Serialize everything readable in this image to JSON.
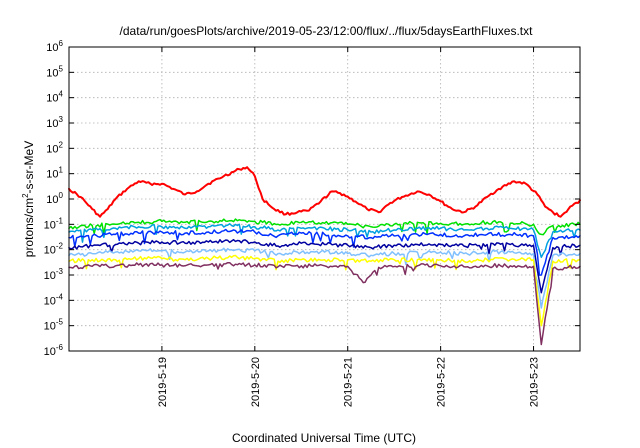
{
  "chart_data": {
    "type": "line",
    "title": "/data/run/goesPlots/archive/2019-05-23/12:00/flux/../flux/5daysEarthFluxes.txt",
    "xlabel": "Coordinated Universal Time (UTC)",
    "ylabel_main": "protons/cm",
    "ylabel_sup": "2",
    "ylabel_tail": "-s-sr-MeV",
    "yscale": "log",
    "ylim": [
      1e-06,
      1000000.0
    ],
    "y_ticks": [
      {
        "base": "10",
        "exp": "-6",
        "value": 1e-06
      },
      {
        "base": "10",
        "exp": "-5",
        "value": 1e-05
      },
      {
        "base": "10",
        "exp": "-4",
        "value": 0.0001
      },
      {
        "base": "10",
        "exp": "-3",
        "value": 0.001
      },
      {
        "base": "10",
        "exp": "-2",
        "value": 0.01
      },
      {
        "base": "10",
        "exp": "-1",
        "value": 0.1
      },
      {
        "base": "10",
        "exp": "0",
        "value": 1
      },
      {
        "base": "10",
        "exp": "1",
        "value": 10
      },
      {
        "base": "10",
        "exp": "2",
        "value": 100
      },
      {
        "base": "10",
        "exp": "3",
        "value": 1000
      },
      {
        "base": "10",
        "exp": "4",
        "value": 10000
      },
      {
        "base": "10",
        "exp": "5",
        "value": 100000
      },
      {
        "base": "10",
        "exp": "6",
        "value": 1000000
      }
    ],
    "xlim": [
      "2019-05-18T00:00",
      "2019-05-23T12:00"
    ],
    "x_ticks": [
      {
        "label": "2019-5-19",
        "value": "2019-05-19T00:00"
      },
      {
        "label": "2019-5-20",
        "value": "2019-05-20T00:00"
      },
      {
        "label": "2019-5-21",
        "value": "2019-05-21T00:00"
      },
      {
        "label": "2019-5-22",
        "value": "2019-05-22T00:00"
      },
      {
        "label": "2019-5-23",
        "value": "2019-05-23T00:00"
      }
    ],
    "grid": true,
    "series": [
      {
        "color": "#ff0000",
        "width": 2,
        "points": [
          [
            "2019-05-18T00:00",
            2.5
          ],
          [
            "2019-05-18T03:00",
            1.2
          ],
          [
            "2019-05-18T06:00",
            0.4
          ],
          [
            "2019-05-18T08:00",
            0.2
          ],
          [
            "2019-05-18T10:00",
            0.4
          ],
          [
            "2019-05-18T12:00",
            1.0
          ],
          [
            "2019-05-18T15:00",
            2.5
          ],
          [
            "2019-05-18T18:00",
            5.0
          ],
          [
            "2019-05-18T21:00",
            4.0
          ],
          [
            "2019-05-19T00:00",
            4.0
          ],
          [
            "2019-05-19T03:00",
            2.5
          ],
          [
            "2019-05-19T06:00",
            1.5
          ],
          [
            "2019-05-19T09:00",
            2.0
          ],
          [
            "2019-05-19T12:00",
            4.0
          ],
          [
            "2019-05-19T16:00",
            8.0
          ],
          [
            "2019-05-19T20:00",
            15.0
          ],
          [
            "2019-05-19T22:00",
            18.0
          ],
          [
            "2019-05-20T00:00",
            8.0
          ],
          [
            "2019-05-20T02:00",
            1.0
          ],
          [
            "2019-05-20T05:00",
            0.4
          ],
          [
            "2019-05-20T08:00",
            0.25
          ],
          [
            "2019-05-20T11:00",
            0.3
          ],
          [
            "2019-05-20T14:00",
            0.35
          ],
          [
            "2019-05-20T17:00",
            0.8
          ],
          [
            "2019-05-20T20:00",
            2.0
          ],
          [
            "2019-05-20T23:00",
            1.5
          ],
          [
            "2019-05-21T02:00",
            0.8
          ],
          [
            "2019-05-21T05:00",
            0.4
          ],
          [
            "2019-05-21T08:00",
            0.3
          ],
          [
            "2019-05-21T11:00",
            0.7
          ],
          [
            "2019-05-21T14:00",
            1.2
          ],
          [
            "2019-05-21T18:00",
            2.0
          ],
          [
            "2019-05-21T21:00",
            1.5
          ],
          [
            "2019-05-22T00:00",
            0.8
          ],
          [
            "2019-05-22T03:00",
            0.4
          ],
          [
            "2019-05-22T06:00",
            0.3
          ],
          [
            "2019-05-22T09:00",
            0.5
          ],
          [
            "2019-05-22T12:00",
            1.2
          ],
          [
            "2019-05-22T15:00",
            2.5
          ],
          [
            "2019-05-22T19:00",
            5.0
          ],
          [
            "2019-05-22T22:00",
            4.0
          ],
          [
            "2019-05-23T01:00",
            1.5
          ],
          [
            "2019-05-23T03:00",
            0.5
          ],
          [
            "2019-05-23T05:00",
            0.3
          ],
          [
            "2019-05-23T07:00",
            0.2
          ],
          [
            "2019-05-23T09:00",
            0.4
          ],
          [
            "2019-05-23T12:00",
            0.9
          ]
        ]
      },
      {
        "color": "#00e000",
        "width": 1.5,
        "points": [
          [
            "2019-05-18T00:00",
            0.07
          ],
          [
            "2019-05-18T06:00",
            0.09
          ],
          [
            "2019-05-18T12:00",
            0.1
          ],
          [
            "2019-05-18T18:00",
            0.12
          ],
          [
            "2019-05-19T00:00",
            0.13
          ],
          [
            "2019-05-19T06:00",
            0.12
          ],
          [
            "2019-05-19T12:00",
            0.13
          ],
          [
            "2019-05-19T18:00",
            0.14
          ],
          [
            "2019-05-20T00:00",
            0.13
          ],
          [
            "2019-05-20T06:00",
            0.1
          ],
          [
            "2019-05-20T12:00",
            0.12
          ],
          [
            "2019-05-20T18:00",
            0.11
          ],
          [
            "2019-05-21T00:00",
            0.1
          ],
          [
            "2019-05-21T06:00",
            0.08
          ],
          [
            "2019-05-21T12:00",
            0.1
          ],
          [
            "2019-05-21T18:00",
            0.12
          ],
          [
            "2019-05-22T00:00",
            0.11
          ],
          [
            "2019-05-22T06:00",
            0.1
          ],
          [
            "2019-05-22T12:00",
            0.12
          ],
          [
            "2019-05-22T18:00",
            0.11
          ],
          [
            "2019-05-23T00:00",
            0.1
          ],
          [
            "2019-05-23T02:00",
            0.04
          ],
          [
            "2019-05-23T05:00",
            0.09
          ],
          [
            "2019-05-23T12:00",
            0.1
          ]
        ]
      },
      {
        "color": "#00a0e0",
        "width": 1.5,
        "points": [
          [
            "2019-05-18T00:00",
            0.05
          ],
          [
            "2019-05-18T06:00",
            0.06
          ],
          [
            "2019-05-18T12:00",
            0.07
          ],
          [
            "2019-05-18T18:00",
            0.08
          ],
          [
            "2019-05-19T00:00",
            0.08
          ],
          [
            "2019-05-19T06:00",
            0.07
          ],
          [
            "2019-05-19T12:00",
            0.08
          ],
          [
            "2019-05-19T18:00",
            0.09
          ],
          [
            "2019-05-20T00:00",
            0.08
          ],
          [
            "2019-05-20T06:00",
            0.06
          ],
          [
            "2019-05-20T12:00",
            0.07
          ],
          [
            "2019-05-20T18:00",
            0.07
          ],
          [
            "2019-05-21T00:00",
            0.06
          ],
          [
            "2019-05-21T06:00",
            0.05
          ],
          [
            "2019-05-21T12:00",
            0.06
          ],
          [
            "2019-05-21T18:00",
            0.07
          ],
          [
            "2019-05-22T00:00",
            0.07
          ],
          [
            "2019-05-22T06:00",
            0.06
          ],
          [
            "2019-05-22T12:00",
            0.07
          ],
          [
            "2019-05-22T18:00",
            0.07
          ],
          [
            "2019-05-23T00:00",
            0.06
          ],
          [
            "2019-05-23T02:00",
            0.005
          ],
          [
            "2019-05-23T05:00",
            0.05
          ],
          [
            "2019-05-23T12:00",
            0.06
          ]
        ]
      },
      {
        "color": "#0030ff",
        "width": 1.5,
        "points": [
          [
            "2019-05-18T00:00",
            0.03
          ],
          [
            "2019-05-18T06:00",
            0.035
          ],
          [
            "2019-05-18T12:00",
            0.04
          ],
          [
            "2019-05-18T18:00",
            0.045
          ],
          [
            "2019-05-19T00:00",
            0.05
          ],
          [
            "2019-05-19T06:00",
            0.045
          ],
          [
            "2019-05-19T12:00",
            0.05
          ],
          [
            "2019-05-19T18:00",
            0.055
          ],
          [
            "2019-05-20T00:00",
            0.05
          ],
          [
            "2019-05-20T06:00",
            0.035
          ],
          [
            "2019-05-20T12:00",
            0.045
          ],
          [
            "2019-05-20T18:00",
            0.04
          ],
          [
            "2019-05-21T00:00",
            0.035
          ],
          [
            "2019-05-21T06:00",
            0.03
          ],
          [
            "2019-05-21T12:00",
            0.035
          ],
          [
            "2019-05-21T18:00",
            0.04
          ],
          [
            "2019-05-22T00:00",
            0.04
          ],
          [
            "2019-05-22T06:00",
            0.035
          ],
          [
            "2019-05-22T12:00",
            0.04
          ],
          [
            "2019-05-22T18:00",
            0.04
          ],
          [
            "2019-05-23T00:00",
            0.035
          ],
          [
            "2019-05-23T02:00",
            0.001
          ],
          [
            "2019-05-23T05:00",
            0.03
          ],
          [
            "2019-05-23T12:00",
            0.035
          ]
        ]
      },
      {
        "color": "#0000a0",
        "width": 1.5,
        "points": [
          [
            "2019-05-18T00:00",
            0.012
          ],
          [
            "2019-05-18T06:00",
            0.014
          ],
          [
            "2019-05-18T12:00",
            0.016
          ],
          [
            "2019-05-18T18:00",
            0.018
          ],
          [
            "2019-05-19T00:00",
            0.02
          ],
          [
            "2019-05-19T06:00",
            0.018
          ],
          [
            "2019-05-19T12:00",
            0.02
          ],
          [
            "2019-05-19T18:00",
            0.022
          ],
          [
            "2019-05-20T00:00",
            0.02
          ],
          [
            "2019-05-20T06:00",
            0.014
          ],
          [
            "2019-05-20T12:00",
            0.018
          ],
          [
            "2019-05-20T18:00",
            0.016
          ],
          [
            "2019-05-21T00:00",
            0.015
          ],
          [
            "2019-05-21T06:00",
            0.012
          ],
          [
            "2019-05-21T12:00",
            0.015
          ],
          [
            "2019-05-21T18:00",
            0.016
          ],
          [
            "2019-05-22T00:00",
            0.016
          ],
          [
            "2019-05-22T06:00",
            0.014
          ],
          [
            "2019-05-22T12:00",
            0.016
          ],
          [
            "2019-05-22T18:00",
            0.016
          ],
          [
            "2019-05-23T00:00",
            0.015
          ],
          [
            "2019-05-23T02:00",
            0.0002
          ],
          [
            "2019-05-23T05:00",
            0.012
          ],
          [
            "2019-05-23T12:00",
            0.015
          ]
        ]
      },
      {
        "color": "#80c0ff",
        "width": 1.5,
        "points": [
          [
            "2019-05-18T00:00",
            0.006
          ],
          [
            "2019-05-18T06:00",
            0.007
          ],
          [
            "2019-05-18T12:00",
            0.008
          ],
          [
            "2019-05-18T18:00",
            0.009
          ],
          [
            "2019-05-19T00:00",
            0.009
          ],
          [
            "2019-05-19T06:00",
            0.008
          ],
          [
            "2019-05-19T12:00",
            0.009
          ],
          [
            "2019-05-19T18:00",
            0.01
          ],
          [
            "2019-05-20T00:00",
            0.009
          ],
          [
            "2019-05-20T06:00",
            0.007
          ],
          [
            "2019-05-20T12:00",
            0.008
          ],
          [
            "2019-05-20T18:00",
            0.008
          ],
          [
            "2019-05-21T00:00",
            0.007
          ],
          [
            "2019-05-21T06:00",
            0.006
          ],
          [
            "2019-05-21T12:00",
            0.007
          ],
          [
            "2019-05-21T18:00",
            0.008
          ],
          [
            "2019-05-22T00:00",
            0.008
          ],
          [
            "2019-05-22T06:00",
            0.007
          ],
          [
            "2019-05-22T12:00",
            0.008
          ],
          [
            "2019-05-22T18:00",
            0.008
          ],
          [
            "2019-05-23T00:00",
            0.007
          ],
          [
            "2019-05-23T02:00",
            5e-05
          ],
          [
            "2019-05-23T05:00",
            0.006
          ],
          [
            "2019-05-23T12:00",
            0.007
          ]
        ]
      },
      {
        "color": "#ffff00",
        "width": 1.5,
        "points": [
          [
            "2019-05-18T00:00",
            0.0035
          ],
          [
            "2019-05-18T06:00",
            0.004
          ],
          [
            "2019-05-18T12:00",
            0.004
          ],
          [
            "2019-05-18T18:00",
            0.0045
          ],
          [
            "2019-05-19T00:00",
            0.0045
          ],
          [
            "2019-05-19T06:00",
            0.004
          ],
          [
            "2019-05-19T12:00",
            0.0045
          ],
          [
            "2019-05-19T18:00",
            0.005
          ],
          [
            "2019-05-20T00:00",
            0.0045
          ],
          [
            "2019-05-20T06:00",
            0.0035
          ],
          [
            "2019-05-20T12:00",
            0.004
          ],
          [
            "2019-05-20T18:00",
            0.004
          ],
          [
            "2019-05-21T00:00",
            0.004
          ],
          [
            "2019-05-21T06:00",
            0.0035
          ],
          [
            "2019-05-21T12:00",
            0.004
          ],
          [
            "2019-05-21T18:00",
            0.004
          ],
          [
            "2019-05-22T00:00",
            0.004
          ],
          [
            "2019-05-22T06:00",
            0.0035
          ],
          [
            "2019-05-22T12:00",
            0.004
          ],
          [
            "2019-05-22T18:00",
            0.004
          ],
          [
            "2019-05-23T00:00",
            0.004
          ],
          [
            "2019-05-23T02:00",
            1e-05
          ],
          [
            "2019-05-23T05:00",
            0.0035
          ],
          [
            "2019-05-23T12:00",
            0.004
          ]
        ]
      },
      {
        "color": "#803060",
        "width": 1.5,
        "points": [
          [
            "2019-05-18T00:00",
            0.002
          ],
          [
            "2019-05-18T06:00",
            0.0022
          ],
          [
            "2019-05-18T12:00",
            0.0023
          ],
          [
            "2019-05-18T18:00",
            0.0025
          ],
          [
            "2019-05-19T00:00",
            0.0025
          ],
          [
            "2019-05-19T06:00",
            0.0023
          ],
          [
            "2019-05-19T12:00",
            0.0025
          ],
          [
            "2019-05-19T18:00",
            0.0026
          ],
          [
            "2019-05-20T00:00",
            0.0025
          ],
          [
            "2019-05-20T06:00",
            0.0021
          ],
          [
            "2019-05-20T12:00",
            0.0023
          ],
          [
            "2019-05-20T18:00",
            0.0023
          ],
          [
            "2019-05-21T00:00",
            0.0022
          ],
          [
            "2019-05-21T04:00",
            0.0005
          ],
          [
            "2019-05-21T08:00",
            0.002
          ],
          [
            "2019-05-21T18:00",
            0.0023
          ],
          [
            "2019-05-22T00:00",
            0.0023
          ],
          [
            "2019-05-22T06:00",
            0.0021
          ],
          [
            "2019-05-22T12:00",
            0.0023
          ],
          [
            "2019-05-22T18:00",
            0.0023
          ],
          [
            "2019-05-23T00:00",
            0.0022
          ],
          [
            "2019-05-23T02:00",
            1.8e-06
          ],
          [
            "2019-05-23T05:00",
            0.0018
          ],
          [
            "2019-05-23T12:00",
            0.0022
          ]
        ]
      }
    ]
  }
}
